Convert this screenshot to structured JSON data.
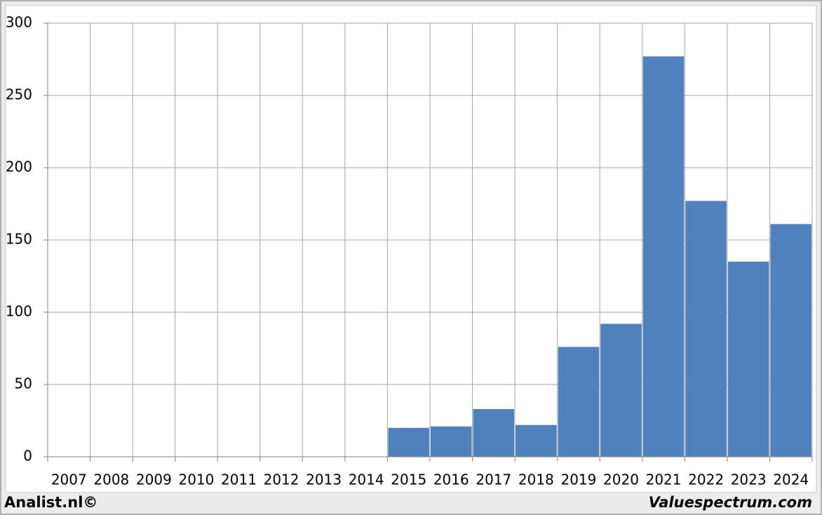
{
  "chart_data": {
    "type": "bar",
    "categories": [
      "2007",
      "2008",
      "2009",
      "2010",
      "2011",
      "2012",
      "2013",
      "2014",
      "2015",
      "2016",
      "2017",
      "2018",
      "2019",
      "2020",
      "2021",
      "2022",
      "2023",
      "2024"
    ],
    "values": [
      null,
      null,
      null,
      null,
      null,
      null,
      null,
      null,
      20,
      21,
      33,
      22,
      76,
      92,
      277,
      177,
      135,
      161
    ],
    "color": "#4f81bd",
    "ylim": [
      0,
      300
    ],
    "yticks": [
      0,
      50,
      100,
      150,
      200,
      250,
      300
    ],
    "grid": true,
    "footer_left": "Analist.nl©",
    "footer_right": "Valuespectrum.com"
  }
}
